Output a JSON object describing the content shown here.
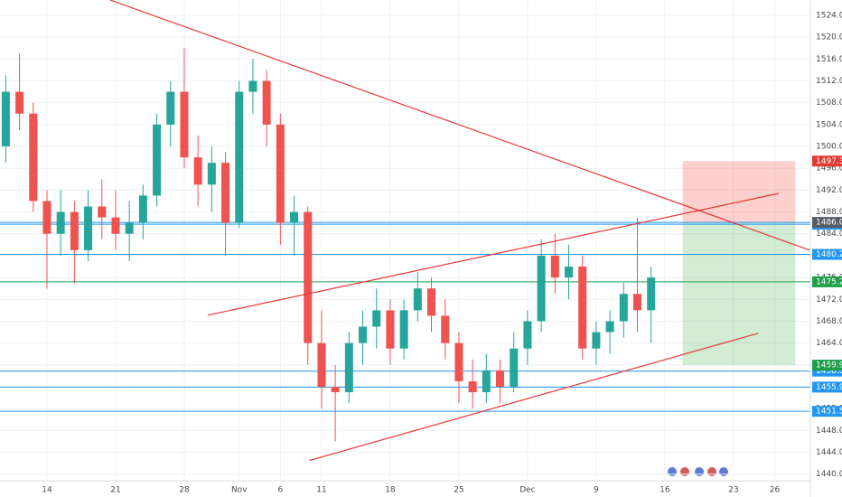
{
  "chart_data": {
    "type": "candlestick",
    "x": [
      -3,
      -2,
      -1,
      0,
      1,
      2,
      3,
      4,
      5,
      6,
      7,
      8,
      9,
      10,
      11,
      12,
      13,
      14,
      15,
      16,
      17,
      18,
      19,
      20,
      21,
      22,
      23,
      24,
      25,
      26,
      27,
      28,
      29,
      30,
      31,
      32,
      33,
      34,
      35,
      36,
      37,
      38,
      39,
      40,
      41,
      42,
      43,
      44
    ],
    "open": [
      1500,
      1510,
      1506,
      1490,
      1484,
      1488,
      1481,
      1489,
      1487,
      1484,
      1486,
      1491,
      1504,
      1510,
      1498,
      1493,
      1497,
      1486,
      1510,
      1512,
      1504,
      1486,
      1488,
      1464,
      1456,
      1455,
      1464,
      1467,
      1470,
      1463,
      1470,
      1474,
      1469,
      1464,
      1457,
      1455,
      1459,
      1456,
      1463,
      1468,
      1480,
      1476,
      1478,
      1463,
      1466,
      1468,
      1473,
      1470
    ],
    "high": [
      1513,
      1517,
      1508,
      1492,
      1492,
      1490,
      1492,
      1494,
      1492,
      1490,
      1493,
      1506,
      1512,
      1518,
      1502,
      1500,
      1499,
      1512,
      1516,
      1514,
      1506,
      1491,
      1489,
      1470,
      1460,
      1466,
      1470,
      1474,
      1472,
      1472,
      1477,
      1476,
      1472,
      1466,
      1461,
      1462,
      1461,
      1466,
      1470,
      1483,
      1484,
      1482,
      1480,
      1468,
      1470,
      1475,
      1487,
      1478
    ],
    "low": [
      1497,
      1503,
      1488,
      1474,
      1480,
      1475,
      1479,
      1483,
      1481,
      1479,
      1483,
      1489,
      1500,
      1496,
      1489,
      1488,
      1480,
      1485,
      1506,
      1500,
      1482,
      1480,
      1460,
      1452,
      1446,
      1453,
      1460,
      1463,
      1460,
      1461,
      1468,
      1466,
      1461,
      1453,
      1452,
      1453,
      1453,
      1455,
      1460,
      1466,
      1473,
      1472,
      1461,
      1460,
      1462,
      1465,
      1466,
      1464
    ],
    "close": [
      1510,
      1506,
      1490,
      1484,
      1488,
      1481,
      1489,
      1487,
      1484,
      1486,
      1491,
      1504,
      1510,
      1498,
      1493,
      1497,
      1486,
      1510,
      1512,
      1504,
      1486,
      1488,
      1464,
      1456,
      1455,
      1464,
      1467,
      1470,
      1463,
      1470,
      1474,
      1469,
      1464,
      1457,
      1455,
      1459,
      1456,
      1463,
      1468,
      1480,
      1476,
      1478,
      1463,
      1466,
      1468,
      1473,
      1470,
      1476
    ],
    "up_color": "#26a69a",
    "down_color": "#ef5350",
    "xlim": [
      -3.42,
      55.6
    ],
    "ylim": [
      1438.8,
      1526.8
    ],
    "xticks": [
      {
        "value": 0,
        "label": "14"
      },
      {
        "value": 5,
        "label": "21"
      },
      {
        "value": 10,
        "label": "28"
      },
      {
        "value": 14,
        "label": "Nov"
      },
      {
        "value": 17,
        "label": "6"
      },
      {
        "value": 20,
        "label": "11"
      },
      {
        "value": 25,
        "label": "18"
      },
      {
        "value": 30,
        "label": "25"
      },
      {
        "value": 35,
        "label": "Dec"
      },
      {
        "value": 40,
        "label": "9"
      },
      {
        "value": 45,
        "label": "16"
      },
      {
        "value": 50,
        "label": "23"
      },
      {
        "value": 53,
        "label": "26"
      }
    ],
    "yticks": [
      {
        "value": 1440,
        "label": "1440.00"
      },
      {
        "value": 1444,
        "label": "1444.00"
      },
      {
        "value": 1448,
        "label": "1448.00"
      },
      {
        "value": 1452,
        "label": "1452.00"
      },
      {
        "value": 1456,
        "label": "1456.00"
      },
      {
        "value": 1460,
        "label": "1460.00"
      },
      {
        "value": 1464,
        "label": "1464.00"
      },
      {
        "value": 1468,
        "label": "1468.00"
      },
      {
        "value": 1472,
        "label": "1472.00"
      },
      {
        "value": 1476,
        "label": "1476.00"
      },
      {
        "value": 1480,
        "label": "1480.00"
      },
      {
        "value": 1484,
        "label": "1484.00"
      },
      {
        "value": 1488,
        "label": "1488.00"
      },
      {
        "value": 1492,
        "label": "1492.00"
      },
      {
        "value": 1496,
        "label": "1496.00"
      },
      {
        "value": 1500,
        "label": "1500.00"
      },
      {
        "value": 1504,
        "label": "1504.00"
      },
      {
        "value": 1508,
        "label": "1508.00"
      },
      {
        "value": 1512,
        "label": "1512.00"
      },
      {
        "value": 1516,
        "label": "1516.00"
      },
      {
        "value": 1520,
        "label": "1520.00"
      },
      {
        "value": 1524,
        "label": "1524.00"
      }
    ],
    "grid": true,
    "trendlines": [
      {
        "x": [
          4.6,
          57.9
        ],
        "y": [
          1526.8,
          1478.9
        ],
        "color": "#e53935"
      },
      {
        "x": [
          11.7,
          53.3
        ],
        "y": [
          1469.1,
          1491.4
        ],
        "color": "#e53935"
      },
      {
        "x": [
          19.1,
          51.8
        ],
        "y": [
          1442.5,
          1465.8
        ],
        "color": "#e53935"
      }
    ],
    "price_lines": [
      {
        "value": 1485.75,
        "color": "#2196f3"
      },
      {
        "value": 1480.23,
        "color": "#2196f3"
      },
      {
        "value": 1475.21,
        "color": "#1e9e4a"
      },
      {
        "value": 1458.86,
        "color": "#2196f3"
      },
      {
        "value": 1455.94,
        "color": "#2196f3"
      },
      {
        "value": 1451.51,
        "color": "#2196f3"
      }
    ],
    "position": {
      "x": [
        46.3,
        54.5
      ],
      "stop": 1497.31,
      "entry": 1486.09,
      "target": 1459.96
    }
  }
}
